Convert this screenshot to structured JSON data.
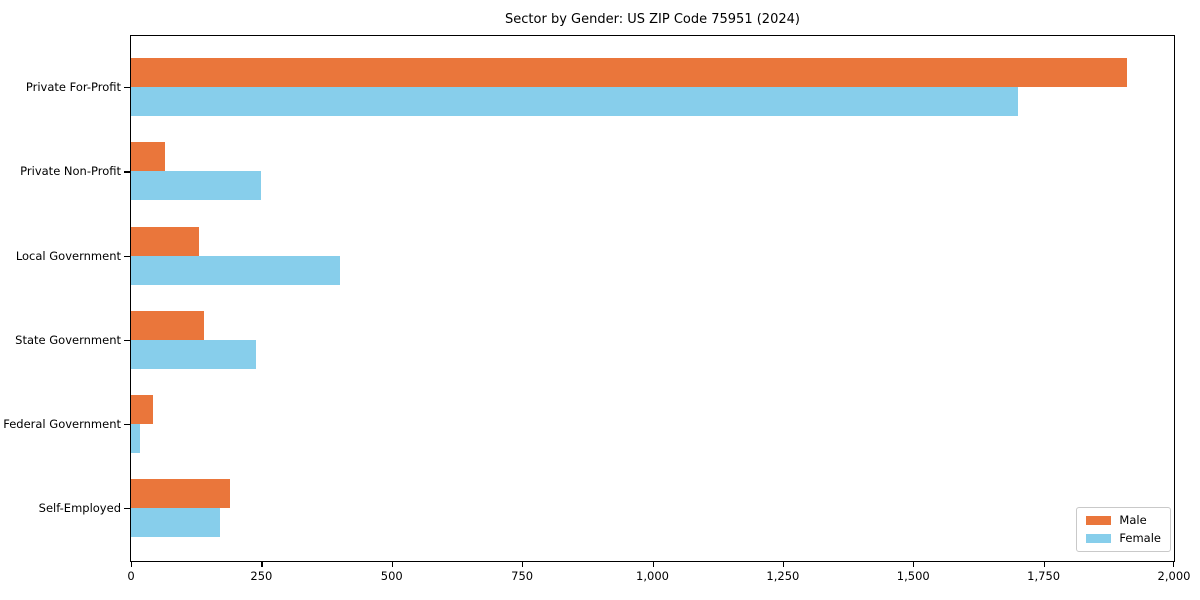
{
  "title": "Sector by Gender: US ZIP Code 75951 (2024)",
  "chart_data": {
    "type": "bar",
    "orientation": "horizontal",
    "title": "Sector by Gender: US ZIP Code 75951 (2024)",
    "categories": [
      "Private For-Profit",
      "Private Non-Profit",
      "Local Government",
      "State Government",
      "Federal Government",
      "Self-Employed"
    ],
    "series": [
      {
        "name": "Male",
        "color": "#EA763B",
        "values": [
          1910,
          65,
          130,
          140,
          42,
          190
        ]
      },
      {
        "name": "Female",
        "color": "#87CEEB",
        "values": [
          1700,
          250,
          400,
          240,
          18,
          170
        ]
      }
    ],
    "xlabel": "",
    "ylabel": "",
    "xlim": [
      0,
      2000
    ],
    "xticks": [
      0,
      250,
      500,
      750,
      1000,
      1250,
      1500,
      1750,
      2000
    ],
    "xtick_labels": [
      "0",
      "250",
      "500",
      "750",
      "1,000",
      "1,250",
      "1,500",
      "1,750",
      "2,000"
    ],
    "grid": false,
    "legend_position": "lower right",
    "bar_value_labels": false
  },
  "colors": {
    "background": "#ffffff",
    "axis": "#000000",
    "legend_border": "#c9c9c9"
  }
}
